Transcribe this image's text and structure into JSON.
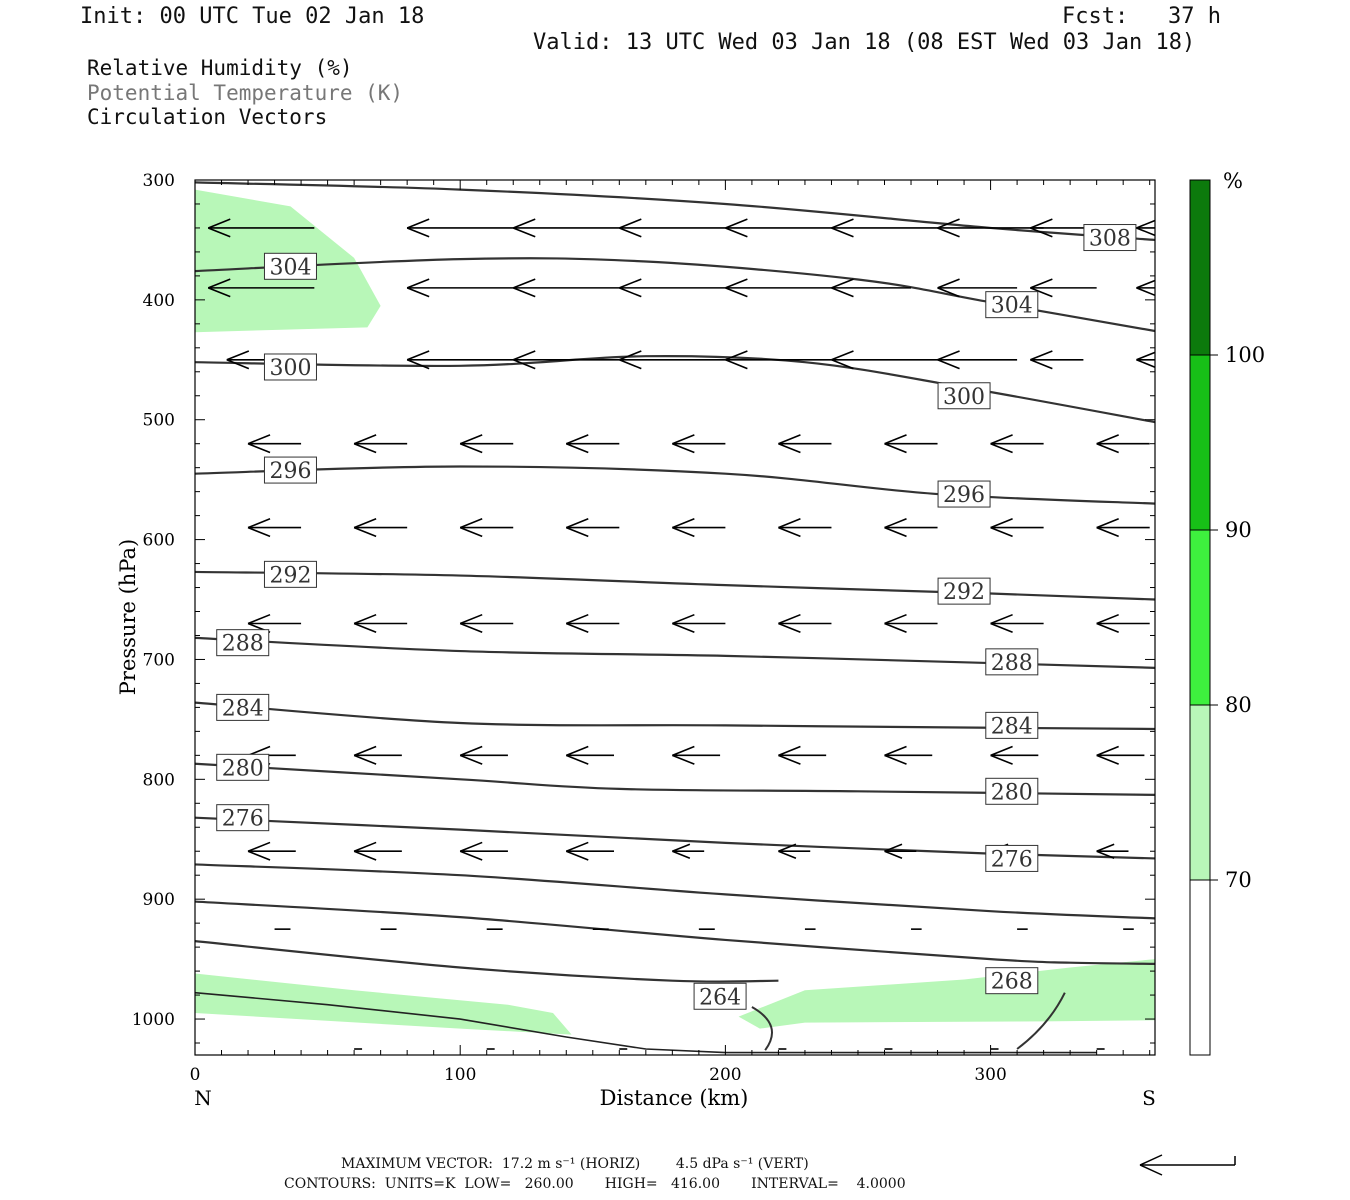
{
  "header": {
    "init": "Init: 00 UTC Tue 02 Jan 18",
    "fcst": "Fcst:   37 h",
    "valid": "Valid: 13 UTC Wed 03 Jan 18 (08 EST Wed 03 Jan 18)"
  },
  "legend": {
    "rh": "Relative Humidity (%)",
    "theta": "Potential Temperature (K)",
    "vectors": "Circulation Vectors"
  },
  "colors": {
    "rh_70_80": "#b8f7b8",
    "rh_80_90": "#3ef03e",
    "rh_90_100": "#17c017",
    "rh_100": "#0c7a0c",
    "contour": "#333333",
    "vector": "#000000"
  },
  "chart_data": {
    "type": "cross-section",
    "xlabel": "Distance (km)",
    "ylabel": "Pressure (hPa)",
    "xlim": [
      0,
      362
    ],
    "ylim": [
      1030,
      300
    ],
    "x_ticks": [
      0,
      100,
      200,
      300
    ],
    "y_ticks": [
      300,
      400,
      500,
      600,
      700,
      800,
      900,
      1000
    ],
    "x_end_labels": {
      "left": "N",
      "right": "S"
    },
    "theta_contours": [
      {
        "value": 308,
        "label": "308",
        "points": [
          [
            0,
            302
          ],
          [
            100,
            308
          ],
          [
            200,
            320
          ],
          [
            300,
            340
          ],
          [
            362,
            350
          ]
        ],
        "labels_at": [
          [
            345,
            348
          ]
        ]
      },
      {
        "value": 304,
        "label": "304",
        "points": [
          [
            0,
            376
          ],
          [
            100,
            366
          ],
          [
            170,
            368
          ],
          [
            250,
            383
          ],
          [
            300,
            402
          ],
          [
            362,
            426
          ]
        ],
        "labels_at": [
          [
            36,
            372
          ],
          [
            308,
            404
          ]
        ]
      },
      {
        "value": 300,
        "label": "300",
        "points": [
          [
            0,
            452
          ],
          [
            100,
            455
          ],
          [
            170,
            447
          ],
          [
            230,
            452
          ],
          [
            290,
            473
          ],
          [
            362,
            502
          ]
        ],
        "labels_at": [
          [
            36,
            456
          ],
          [
            290,
            480
          ]
        ]
      },
      {
        "value": 296,
        "label": "296",
        "points": [
          [
            0,
            545
          ],
          [
            100,
            539
          ],
          [
            200,
            545
          ],
          [
            280,
            562
          ],
          [
            362,
            570
          ]
        ],
        "labels_at": [
          [
            36,
            542
          ],
          [
            290,
            562
          ]
        ]
      },
      {
        "value": 292,
        "label": "292",
        "points": [
          [
            0,
            627
          ],
          [
            100,
            630
          ],
          [
            200,
            638
          ],
          [
            300,
            645
          ],
          [
            362,
            650
          ]
        ],
        "labels_at": [
          [
            36,
            629
          ],
          [
            290,
            643
          ]
        ]
      },
      {
        "value": 288,
        "label": "288",
        "points": [
          [
            0,
            682
          ],
          [
            100,
            693
          ],
          [
            200,
            697
          ],
          [
            300,
            703
          ],
          [
            362,
            707
          ]
        ],
        "labels_at": [
          [
            18,
            686
          ],
          [
            308,
            702
          ]
        ]
      },
      {
        "value": 284,
        "label": "284",
        "points": [
          [
            0,
            736
          ],
          [
            100,
            753
          ],
          [
            200,
            755
          ],
          [
            300,
            757
          ],
          [
            362,
            758
          ]
        ],
        "labels_at": [
          [
            18,
            740
          ],
          [
            308,
            755
          ]
        ]
      },
      {
        "value": 280,
        "label": "280",
        "points": [
          [
            0,
            787
          ],
          [
            100,
            800
          ],
          [
            160,
            808
          ],
          [
            250,
            810
          ],
          [
            362,
            813
          ]
        ],
        "labels_at": [
          [
            18,
            790
          ],
          [
            308,
            810
          ]
        ]
      },
      {
        "value": 276,
        "label": "276",
        "points": [
          [
            0,
            832
          ],
          [
            100,
            842
          ],
          [
            200,
            853
          ],
          [
            300,
            862
          ],
          [
            362,
            866
          ]
        ],
        "labels_at": [
          [
            18,
            832
          ],
          [
            308,
            866
          ]
        ]
      },
      {
        "value": 272,
        "label": "",
        "points": [
          [
            0,
            871
          ],
          [
            100,
            880
          ],
          [
            200,
            896
          ],
          [
            300,
            910
          ],
          [
            362,
            916
          ]
        ],
        "labels_at": []
      },
      {
        "value": 268,
        "label": "268",
        "points": [
          [
            0,
            902
          ],
          [
            100,
            915
          ],
          [
            200,
            934
          ],
          [
            300,
            950
          ],
          [
            330,
            953
          ],
          [
            362,
            954
          ]
        ],
        "labels_at": [
          [
            308,
            968
          ]
        ]
      },
      {
        "value": 264,
        "label": "264",
        "points": [
          [
            0,
            935
          ],
          [
            100,
            957
          ],
          [
            180,
            968
          ],
          [
            220,
            968
          ]
        ],
        "labels_at": [
          [
            198,
            981
          ]
        ]
      }
    ],
    "rh_shading": [
      {
        "range": "70-80",
        "polygon": [
          [
            0,
            308
          ],
          [
            36,
            322
          ],
          [
            60,
            365
          ],
          [
            70,
            405
          ],
          [
            65,
            423
          ],
          [
            0,
            427
          ]
        ]
      },
      {
        "range": "70-80",
        "polygon": [
          [
            0,
            962
          ],
          [
            60,
            976
          ],
          [
            118,
            988
          ],
          [
            135,
            995
          ],
          [
            142,
            1013
          ],
          [
            100,
            1008
          ],
          [
            0,
            995
          ]
        ]
      },
      {
        "range": "70-80",
        "polygon": [
          [
            205,
            998
          ],
          [
            230,
            976
          ],
          [
            290,
            967
          ],
          [
            330,
            957
          ],
          [
            362,
            950
          ],
          [
            362,
            1001
          ],
          [
            320,
            1002
          ],
          [
            230,
            1003
          ],
          [
            213,
            1008
          ]
        ]
      }
    ],
    "vector_rows": [
      {
        "p": 340,
        "x": [
          5,
          80,
          120,
          160,
          200,
          240,
          280,
          315,
          355
        ],
        "len": [
          40,
          40,
          40,
          40,
          40,
          40,
          40,
          40,
          40
        ]
      },
      {
        "p": 390,
        "x": [
          5,
          80,
          120,
          160,
          200,
          240,
          280,
          315,
          355
        ],
        "len": [
          40,
          40,
          40,
          40,
          40,
          30,
          30,
          25,
          25
        ]
      },
      {
        "p": 450,
        "x": [
          12,
          80,
          120,
          160,
          200,
          240,
          280,
          315,
          355
        ],
        "len": [
          30,
          40,
          40,
          40,
          40,
          40,
          30,
          20,
          15
        ]
      },
      {
        "p": 520,
        "x": [
          20,
          60,
          100,
          140,
          180,
          220,
          260,
          300,
          340
        ],
        "len": [
          20,
          20,
          20,
          20,
          20,
          20,
          20,
          20,
          20
        ]
      },
      {
        "p": 590,
        "x": [
          20,
          60,
          100,
          140,
          180,
          220,
          260,
          300,
          340
        ],
        "len": [
          20,
          20,
          20,
          20,
          20,
          20,
          20,
          20,
          20
        ]
      },
      {
        "p": 670,
        "x": [
          20,
          60,
          100,
          140,
          180,
          220,
          260,
          300,
          340
        ],
        "len": [
          20,
          20,
          20,
          20,
          20,
          20,
          20,
          20,
          20
        ]
      },
      {
        "p": 780,
        "x": [
          20,
          60,
          100,
          140,
          180,
          220,
          260,
          300,
          340
        ],
        "len": [
          18,
          18,
          18,
          18,
          18,
          18,
          18,
          18,
          18
        ]
      },
      {
        "p": 860,
        "x": [
          20,
          60,
          100,
          140,
          180,
          220,
          260,
          300,
          340
        ],
        "len": [
          18,
          18,
          18,
          18,
          12,
          12,
          12,
          12,
          12
        ]
      },
      {
        "p": 925,
        "x": [
          30,
          70,
          110,
          150,
          190,
          230,
          270,
          310,
          350
        ],
        "len": [
          6,
          6,
          6,
          6,
          6,
          4,
          4,
          4,
          4
        ]
      },
      {
        "p": 1025,
        "x": [
          60,
          110,
          160,
          220,
          260,
          300,
          340
        ],
        "len": [
          3,
          3,
          3,
          3,
          3,
          3,
          3
        ]
      }
    ],
    "colorbar": {
      "unit": "%",
      "labels": [
        "70",
        "80",
        "90",
        "100"
      ]
    }
  },
  "footer": {
    "line1": "MAXIMUM VECTOR:  17.2 m s⁻¹ (HORIZ)        4.5 dPa s⁻¹ (VERT)",
    "line2": "CONTOURS:  UNITS=K  LOW=   260.00       HIGH=   416.00       INTERVAL=    4.0000"
  }
}
